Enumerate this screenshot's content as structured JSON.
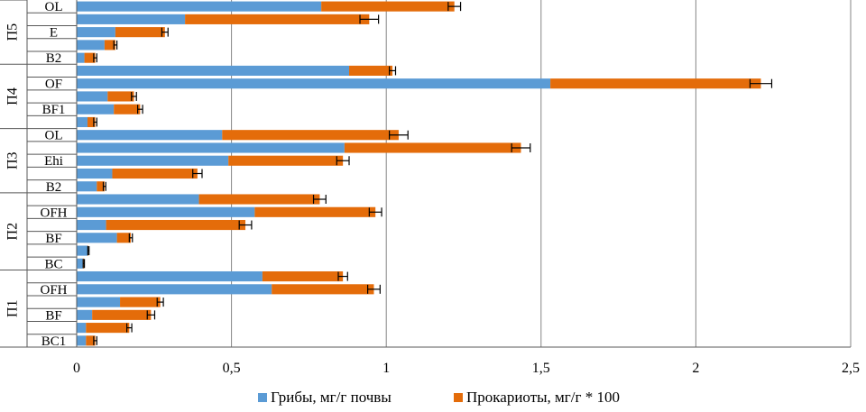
{
  "chart_data": {
    "type": "bar",
    "orientation": "horizontal",
    "stacked": true,
    "xlim": [
      0,
      2.5
    ],
    "x_ticks": [
      "0",
      "0,5",
      "1",
      "1,5",
      "2",
      "2,5"
    ],
    "grid": "vertical",
    "legend_position": "bottom",
    "colors": {
      "fungi": "#5B9BD5",
      "prokaryotes": "#E46C0A",
      "grid": "#868686",
      "axis": "#595959"
    },
    "series": [
      {
        "name": "Грибы, мг/г почвы",
        "key": "fungi"
      },
      {
        "name": "Прокариоты, мг/г * 100",
        "key": "prokaryotes"
      }
    ],
    "groups": [
      {
        "name": "П5",
        "rows": [
          {
            "label": "OL",
            "fungi": 0.79,
            "prok": 0.43,
            "err": 0.02
          },
          {
            "label": "",
            "fungi": 0.35,
            "prok": 0.595,
            "err": 0.03
          },
          {
            "label": "E",
            "fungi": 0.125,
            "prok": 0.16,
            "err": 0.01
          },
          {
            "label": "",
            "fungi": 0.09,
            "prok": 0.035,
            "err": 0.005
          },
          {
            "label": "B2",
            "fungi": 0.025,
            "prok": 0.035,
            "err": 0.005
          }
        ]
      },
      {
        "name": "П4",
        "rows": [
          {
            "label": "",
            "fungi": 0.88,
            "prok": 0.14,
            "err": 0.01
          },
          {
            "label": "OF",
            "fungi": 1.53,
            "prok": 0.68,
            "err": 0.035
          },
          {
            "label": "",
            "fungi": 0.1,
            "prok": 0.085,
            "err": 0.008
          },
          {
            "label": "BF1",
            "fungi": 0.12,
            "prok": 0.085,
            "err": 0.008
          },
          {
            "label": "",
            "fungi": 0.035,
            "prok": 0.025,
            "err": 0.005
          }
        ]
      },
      {
        "name": "П3",
        "rows": [
          {
            "label": "OL",
            "fungi": 0.47,
            "prok": 0.57,
            "err": 0.03
          },
          {
            "label": "",
            "fungi": 0.865,
            "prok": 0.57,
            "err": 0.03
          },
          {
            "label": "Ehi",
            "fungi": 0.49,
            "prok": 0.37,
            "err": 0.02
          },
          {
            "label": "",
            "fungi": 0.115,
            "prok": 0.275,
            "err": 0.015
          },
          {
            "label": "B2",
            "fungi": 0.065,
            "prok": 0.025,
            "err": 0.004
          }
        ]
      },
      {
        "name": "П2",
        "rows": [
          {
            "label": "",
            "fungi": 0.395,
            "prok": 0.39,
            "err": 0.02
          },
          {
            "label": "OFH",
            "fungi": 0.575,
            "prok": 0.39,
            "err": 0.02
          },
          {
            "label": "",
            "fungi": 0.095,
            "prok": 0.45,
            "err": 0.02
          },
          {
            "label": "BF",
            "fungi": 0.13,
            "prok": 0.045,
            "err": 0.005
          },
          {
            "label": "",
            "fungi": 0.035,
            "prok": 0.003,
            "err": 0.002
          },
          {
            "label": "BC",
            "fungi": 0.02,
            "prok": 0.003,
            "err": 0.002
          }
        ]
      },
      {
        "name": "П1",
        "rows": [
          {
            "label": "",
            "fungi": 0.6,
            "prok": 0.26,
            "err": 0.015
          },
          {
            "label": "OFH",
            "fungi": 0.63,
            "prok": 0.33,
            "err": 0.02
          },
          {
            "label": "",
            "fungi": 0.14,
            "prok": 0.13,
            "err": 0.01
          },
          {
            "label": "BF",
            "fungi": 0.05,
            "prok": 0.19,
            "err": 0.012
          },
          {
            "label": "",
            "fungi": 0.03,
            "prok": 0.14,
            "err": 0.008
          },
          {
            "label": "BC1",
            "fungi": 0.03,
            "prok": 0.03,
            "err": 0.005
          }
        ]
      }
    ]
  }
}
